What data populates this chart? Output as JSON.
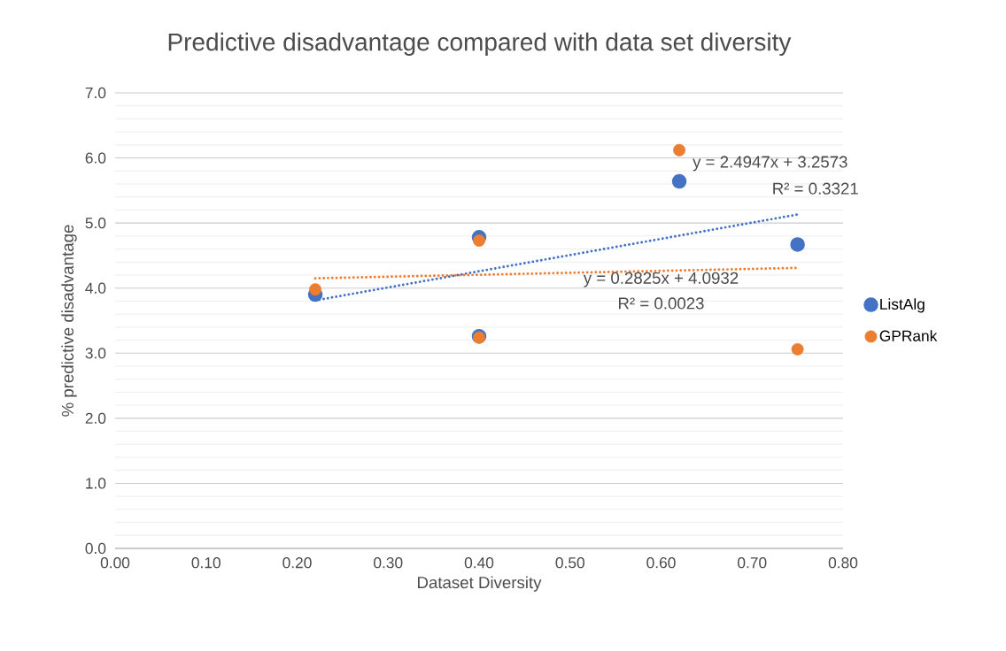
{
  "chart_data": {
    "type": "scatter",
    "title": "Predictive disadvantage compared with data set diversity",
    "xlabel": "Dataset Diversity",
    "ylabel": "% predictive disadvantage",
    "series": [
      {
        "name": "ListAlg",
        "color": "#4472c4",
        "x": [
          0.22,
          0.4,
          0.4,
          0.62,
          0.75
        ],
        "values": [
          3.9,
          4.78,
          3.26,
          5.64,
          4.67
        ]
      },
      {
        "name": "GPRank",
        "color": "#ed7d31",
        "x": [
          0.22,
          0.4,
          0.4,
          0.62,
          0.75
        ],
        "values": [
          3.98,
          4.73,
          3.24,
          6.12,
          3.06
        ]
      },
      {
        "type": "line",
        "color": "#4472c4",
        "line_style": "dotted",
        "marker": "none",
        "x": [
          0.22,
          0.75
        ],
        "values": [
          3.81,
          5.13
        ]
      },
      {
        "type": "line",
        "color": "#ed7d31",
        "line_style": "dotted",
        "marker": "none",
        "x": [
          0.22,
          0.75
        ],
        "values": [
          4.15,
          4.31
        ]
      }
    ],
    "annotations": [
      "y = 2.4947x + 3.2573",
      "R² = 0.3321",
      "y = 0.2825x + 4.0932",
      "R² = 0.0023"
    ],
    "xlim": [
      0,
      0.8
    ],
    "ylim": [
      0,
      7
    ],
    "xticks": [
      {
        "value": 0,
        "label": "0.00"
      },
      {
        "value": 0.1,
        "label": "0.10"
      },
      {
        "value": 0.2,
        "label": "0.20"
      },
      {
        "value": 0.3,
        "label": "0.30"
      },
      {
        "value": 0.4,
        "label": "0.40"
      },
      {
        "value": 0.5,
        "label": "0.50"
      },
      {
        "value": 0.6,
        "label": "0.60"
      },
      {
        "value": 0.7,
        "label": "0.70"
      },
      {
        "value": 0.8,
        "label": "0.80"
      }
    ],
    "yticks": [
      {
        "value": 0,
        "label": "0.0"
      },
      {
        "value": 1,
        "label": "1.0"
      },
      {
        "value": 2,
        "label": "2.0"
      },
      {
        "value": 3,
        "label": "3.0"
      },
      {
        "value": 4,
        "label": "4.0"
      },
      {
        "value": 5,
        "label": "5.0"
      },
      {
        "value": 6,
        "label": "6.0"
      },
      {
        "value": 7,
        "label": "7.0"
      }
    ],
    "grid": "y",
    "legend": "right",
    "marker": "circle"
  }
}
